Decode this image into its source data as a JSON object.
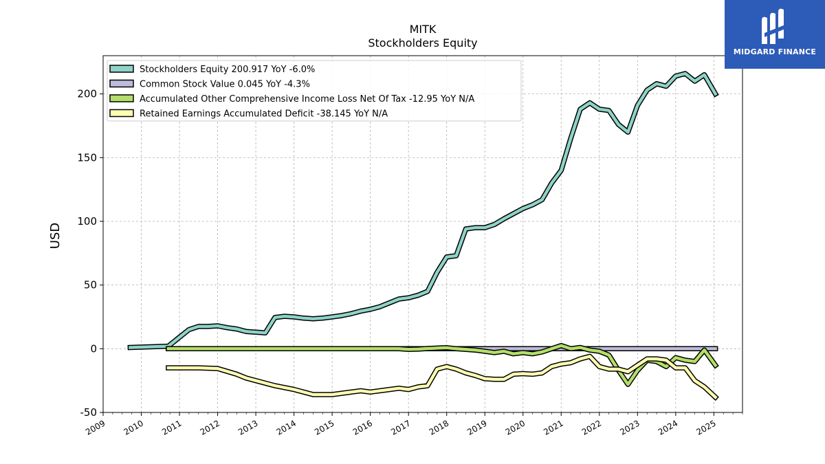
{
  "brand": {
    "name": "MIDGARD FINANCE",
    "bg_color": "#2d5bb8"
  },
  "chart_data": {
    "type": "line",
    "title": "MITK",
    "subtitle": "Stockholders  Equity",
    "ylabel": "USD",
    "xlabel": "",
    "ylim": [
      -50,
      230
    ],
    "xlim": [
      2009.0,
      2025.75
    ],
    "yticks": [
      -50,
      0,
      50,
      100,
      150,
      200
    ],
    "xticks": [
      "2009",
      "2010",
      "2011",
      "2012",
      "2013",
      "2014",
      "2015",
      "2016",
      "2017",
      "2018",
      "2019",
      "2020",
      "2021",
      "2022",
      "2023",
      "2024",
      "2025"
    ],
    "grid": true,
    "legend_position": "top-left",
    "series": [
      {
        "name": "Stockholders Equity  200.917 YoY -6.0%",
        "color": "#8ed3c7",
        "x": [
          2009.71,
          2010.71,
          2011.0,
          2011.25,
          2011.5,
          2011.75,
          2012.0,
          2012.25,
          2012.5,
          2012.75,
          2013.0,
          2013.25,
          2013.5,
          2013.75,
          2014.0,
          2014.25,
          2014.5,
          2014.75,
          2015.0,
          2015.25,
          2015.5,
          2015.75,
          2016.0,
          2016.25,
          2016.5,
          2016.75,
          2017.0,
          2017.25,
          2017.5,
          2017.75,
          2018.0,
          2018.25,
          2018.5,
          2018.75,
          2019.0,
          2019.25,
          2019.5,
          2019.75,
          2020.0,
          2020.25,
          2020.5,
          2020.75,
          2021.0,
          2021.25,
          2021.5,
          2021.75,
          2022.0,
          2022.25,
          2022.5,
          2022.75,
          2023.0,
          2023.25,
          2023.5,
          2023.75,
          2024.0,
          2024.25,
          2024.5,
          2024.75,
          2025.04
        ],
        "values": [
          1,
          2,
          9,
          15,
          17.5,
          17.5,
          18,
          16.5,
          15.5,
          13.5,
          13,
          12.5,
          24.5,
          25.5,
          25,
          24,
          23.5,
          24,
          25,
          26,
          27.5,
          29.5,
          31,
          33,
          36,
          39,
          40,
          42,
          45,
          60,
          72,
          73,
          94,
          95,
          95,
          97.5,
          102,
          106,
          110,
          113,
          117,
          130,
          140,
          165,
          188,
          193,
          188,
          187,
          176,
          170,
          191,
          203,
          208,
          206,
          214,
          216,
          210,
          215,
          200
        ]
      },
      {
        "name": "Common Stock Value  0.045 YoY -4.3%",
        "color": "#bebada",
        "x": [
          2010.71,
          2025.04
        ],
        "values": [
          0.05,
          0.045
        ]
      },
      {
        "name": "Accumulated Other Comprehensive Income Loss Net Of Tax  -12.95 YoY N/A",
        "color": "#b3de69",
        "x": [
          2010.71,
          2013.0,
          2015.0,
          2016.0,
          2016.75,
          2017.0,
          2017.25,
          2017.5,
          2018.0,
          2018.25,
          2018.5,
          2018.75,
          2019.0,
          2019.25,
          2019.5,
          2019.75,
          2020.0,
          2020.25,
          2020.5,
          2020.75,
          2021.0,
          2021.25,
          2021.5,
          2021.75,
          2022.0,
          2022.25,
          2022.5,
          2022.75,
          2023.0,
          2023.25,
          2023.5,
          2023.75,
          2024.0,
          2024.25,
          2024.5,
          2024.75,
          2025.04
        ],
        "values": [
          0,
          0,
          0,
          0,
          0,
          -0.5,
          -0.3,
          0.2,
          0.8,
          0,
          -0.5,
          -1,
          -2,
          -3,
          -2,
          -4,
          -3,
          -4,
          -2.5,
          0,
          2.5,
          0,
          1,
          -1,
          -2,
          -5,
          -17,
          -28,
          -17,
          -9,
          -10,
          -14,
          -7,
          -9,
          -10,
          -1,
          -13
        ]
      },
      {
        "name": "Retained Earnings Accumulated Deficit  -38.145 YoY N/A",
        "color": "#ffffb3",
        "x": [
          2010.71,
          2011.5,
          2012.0,
          2012.5,
          2012.75,
          2013.0,
          2013.5,
          2014.0,
          2014.5,
          2015.0,
          2015.5,
          2015.75,
          2016.0,
          2016.5,
          2016.75,
          2017.0,
          2017.25,
          2017.5,
          2017.75,
          2018.0,
          2018.25,
          2018.5,
          2018.75,
          2019.0,
          2019.25,
          2019.5,
          2019.75,
          2020.0,
          2020.25,
          2020.5,
          2020.75,
          2021.0,
          2021.25,
          2021.5,
          2021.75,
          2022.0,
          2022.25,
          2022.5,
          2022.75,
          2023.0,
          2023.25,
          2023.5,
          2023.75,
          2024.0,
          2024.25,
          2024.5,
          2024.75,
          2025.04
        ],
        "values": [
          -15,
          -15,
          -15.5,
          -20,
          -23,
          -25,
          -29,
          -32,
          -36,
          -36,
          -34,
          -33,
          -34,
          -32,
          -31,
          -32,
          -30,
          -29,
          -16,
          -14,
          -16,
          -19,
          -21,
          -23.5,
          -24,
          -24,
          -20,
          -19.5,
          -20,
          -19,
          -14,
          -12,
          -11,
          -8,
          -6,
          -14,
          -16,
          -16,
          -18,
          -13,
          -8,
          -8,
          -9,
          -15,
          -15,
          -25,
          -30,
          -38
        ]
      }
    ]
  }
}
